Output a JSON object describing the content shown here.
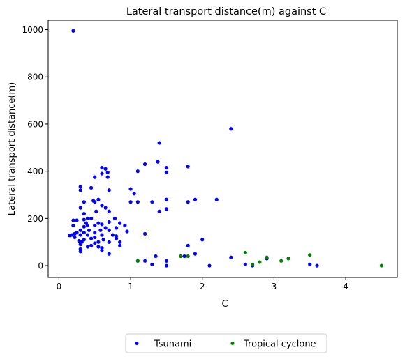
{
  "chart_data": {
    "type": "scatter",
    "title": "Lateral transport distance(m) against C",
    "xlabel": "C",
    "ylabel": "Lateral transport distance(m)",
    "xlim": [
      -0.15,
      4.72
    ],
    "ylim": [
      -50,
      1040
    ],
    "xticks": [
      0,
      1,
      2,
      3,
      4
    ],
    "yticks": [
      0,
      200,
      400,
      600,
      800,
      1000
    ],
    "grid": false,
    "legend": {
      "placement": "bottom-center-outside",
      "columns": 2
    },
    "series": [
      {
        "name": "Tsunami",
        "color": "#0000ff",
        "points": [
          [
            0.2,
            995
          ],
          [
            0.15,
            128
          ],
          [
            0.18,
            130
          ],
          [
            0.2,
            192
          ],
          [
            0.2,
            170
          ],
          [
            0.22,
            135
          ],
          [
            0.22,
            120
          ],
          [
            0.25,
            192
          ],
          [
            0.25,
            140
          ],
          [
            0.28,
            105
          ],
          [
            0.3,
            335
          ],
          [
            0.3,
            320
          ],
          [
            0.3,
            245
          ],
          [
            0.3,
            150
          ],
          [
            0.3,
            130
          ],
          [
            0.3,
            90
          ],
          [
            0.3,
            70
          ],
          [
            0.3,
            60
          ],
          [
            0.32,
            100
          ],
          [
            0.35,
            270
          ],
          [
            0.35,
            220
          ],
          [
            0.35,
            195
          ],
          [
            0.35,
            165
          ],
          [
            0.35,
            140
          ],
          [
            0.35,
            110
          ],
          [
            0.38,
            180
          ],
          [
            0.4,
            200
          ],
          [
            0.4,
            170
          ],
          [
            0.4,
            130
          ],
          [
            0.4,
            80
          ],
          [
            0.42,
            150
          ],
          [
            0.45,
            330
          ],
          [
            0.45,
            200
          ],
          [
            0.45,
            115
          ],
          [
            0.45,
            85
          ],
          [
            0.48,
            275
          ],
          [
            0.5,
            375
          ],
          [
            0.5,
            270
          ],
          [
            0.5,
            170
          ],
          [
            0.5,
            140
          ],
          [
            0.5,
            120
          ],
          [
            0.5,
            95
          ],
          [
            0.52,
            230
          ],
          [
            0.55,
            280
          ],
          [
            0.55,
            180
          ],
          [
            0.55,
            100
          ],
          [
            0.55,
            80
          ],
          [
            0.58,
            150
          ],
          [
            0.6,
            415
          ],
          [
            0.6,
            390
          ],
          [
            0.6,
            255
          ],
          [
            0.6,
            175
          ],
          [
            0.6,
            130
          ],
          [
            0.6,
            75
          ],
          [
            0.6,
            65
          ],
          [
            0.62,
            110
          ],
          [
            0.65,
            410
          ],
          [
            0.65,
            245
          ],
          [
            0.65,
            160
          ],
          [
            0.68,
            395
          ],
          [
            0.68,
            375
          ],
          [
            0.7,
            320
          ],
          [
            0.7,
            230
          ],
          [
            0.7,
            185
          ],
          [
            0.7,
            150
          ],
          [
            0.7,
            100
          ],
          [
            0.7,
            50
          ],
          [
            0.75,
            130
          ],
          [
            0.78,
            200
          ],
          [
            0.8,
            160
          ],
          [
            0.8,
            125
          ],
          [
            0.8,
            115
          ],
          [
            0.85,
            180
          ],
          [
            0.85,
            100
          ],
          [
            0.85,
            85
          ],
          [
            0.92,
            170
          ],
          [
            0.95,
            145
          ],
          [
            1.0,
            325
          ],
          [
            1.0,
            270
          ],
          [
            1.05,
            305
          ],
          [
            1.1,
            400
          ],
          [
            1.1,
            270
          ],
          [
            1.1,
            20
          ],
          [
            1.2,
            430
          ],
          [
            1.2,
            135
          ],
          [
            1.2,
            20
          ],
          [
            1.3,
            270
          ],
          [
            1.3,
            5
          ],
          [
            1.35,
            40
          ],
          [
            1.38,
            440
          ],
          [
            1.4,
            520
          ],
          [
            1.4,
            230
          ],
          [
            1.5,
            415
          ],
          [
            1.5,
            395
          ],
          [
            1.5,
            280
          ],
          [
            1.5,
            240
          ],
          [
            1.5,
            20
          ],
          [
            1.5,
            0
          ],
          [
            1.75,
            40
          ],
          [
            1.8,
            420
          ],
          [
            1.8,
            270
          ],
          [
            1.8,
            85
          ],
          [
            1.9,
            280
          ],
          [
            1.9,
            50
          ],
          [
            2.0,
            110
          ],
          [
            2.1,
            0
          ],
          [
            2.2,
            280
          ],
          [
            2.4,
            580
          ],
          [
            2.4,
            35
          ],
          [
            2.6,
            5
          ],
          [
            2.7,
            0
          ],
          [
            2.9,
            30
          ],
          [
            3.5,
            5
          ],
          [
            3.6,
            0
          ]
        ]
      },
      {
        "name": "Tropical cyclone",
        "color": "#008000",
        "points": [
          [
            1.1,
            20
          ],
          [
            1.7,
            40
          ],
          [
            1.8,
            40
          ],
          [
            2.6,
            55
          ],
          [
            2.7,
            5
          ],
          [
            2.8,
            15
          ],
          [
            2.9,
            35
          ],
          [
            3.1,
            20
          ],
          [
            3.2,
            30
          ],
          [
            3.5,
            45
          ],
          [
            4.5,
            0
          ]
        ]
      }
    ]
  }
}
